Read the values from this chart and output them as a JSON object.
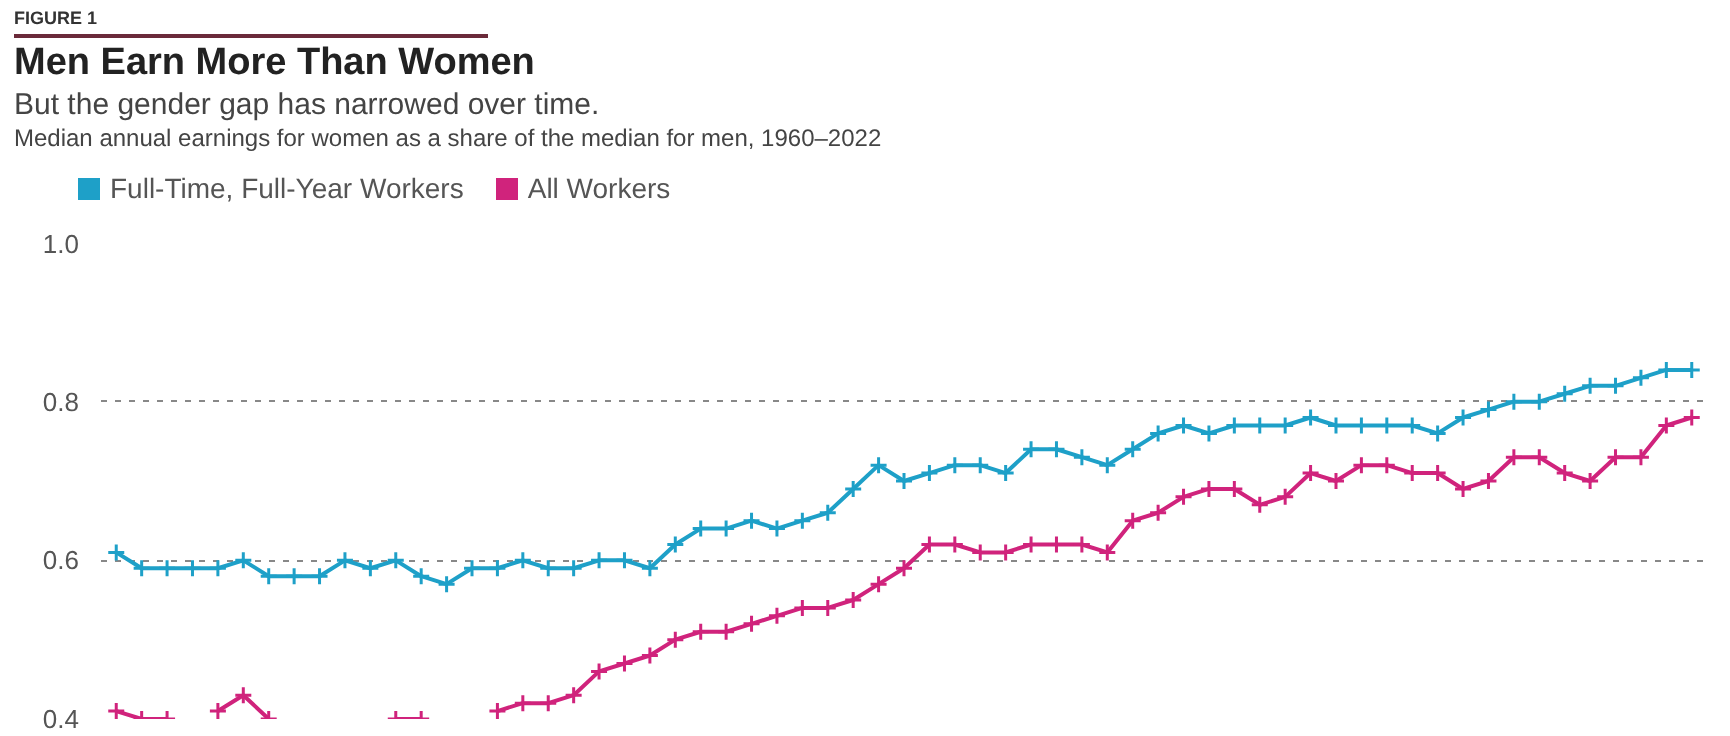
{
  "chart_data": {
    "type": "line",
    "title": "Men Earn More Than Women",
    "subtitle": "But the gender gap has narrowed over time.",
    "annotations": [
      "FIGURE 1",
      "Median annual earnings for women as a share of the median for men, 1960–2022"
    ],
    "categories": [
      null,
      null,
      null,
      null,
      null,
      null,
      null,
      null,
      null,
      null,
      null,
      null,
      null,
      null,
      null,
      null,
      null,
      null,
      null,
      null,
      null,
      null,
      null,
      null,
      null,
      null,
      null,
      null,
      null,
      null,
      null,
      null,
      null,
      null,
      null,
      null,
      null,
      null,
      null,
      null,
      null,
      null,
      null,
      null,
      null,
      null,
      null,
      null,
      null,
      null,
      null,
      null,
      null,
      null,
      null,
      null,
      null,
      null,
      null,
      null,
      null,
      null,
      null
    ],
    "series": [
      {
        "name": "Full-Time, Full-Year Workers",
        "color": "#1ea0c8",
        "values": [
          0.61,
          0.59,
          0.59,
          0.59,
          0.59,
          0.6,
          0.58,
          0.58,
          0.58,
          0.6,
          0.59,
          0.6,
          0.58,
          0.57,
          0.59,
          0.59,
          0.6,
          0.59,
          0.59,
          0.6,
          0.6,
          0.59,
          0.62,
          0.64,
          0.64,
          0.65,
          0.64,
          0.65,
          0.66,
          0.69,
          0.72,
          0.7,
          0.71,
          0.72,
          0.72,
          0.71,
          0.74,
          0.74,
          0.73,
          0.72,
          0.74,
          0.76,
          0.77,
          0.76,
          0.77,
          0.77,
          0.77,
          0.78,
          0.77,
          0.77,
          0.77,
          0.77,
          0.76,
          0.78,
          0.79,
          0.8,
          0.8,
          0.81,
          0.82,
          0.82,
          0.83,
          0.84,
          0.84
        ]
      },
      {
        "name": "All Workers",
        "color": "#d0237c",
        "values": [
          0.41,
          0.4,
          0.4,
          null,
          0.41,
          0.43,
          0.4,
          null,
          null,
          null,
          null,
          0.4,
          0.4,
          null,
          null,
          0.41,
          0.42,
          0.42,
          0.43,
          0.46,
          0.47,
          0.48,
          0.5,
          0.51,
          0.51,
          0.52,
          0.53,
          0.54,
          0.54,
          0.55,
          0.57,
          0.59,
          0.62,
          0.62,
          0.61,
          0.61,
          0.62,
          0.62,
          0.62,
          0.61,
          0.65,
          0.66,
          0.68,
          0.69,
          0.69,
          0.67,
          0.68,
          0.71,
          0.7,
          0.72,
          0.72,
          0.71,
          0.71,
          0.69,
          0.7,
          0.73,
          0.73,
          0.71,
          0.7,
          0.73,
          0.73,
          0.77,
          0.78
        ]
      }
    ],
    "ylim": [
      0.4,
      1.0
    ],
    "yticks": [
      0.4,
      0.6,
      0.8,
      {
        "value": 1.0,
        "label": "1.0"
      }
    ],
    "grid": "y",
    "legend": "top left",
    "marker": "cross",
    "line_style": "solid",
    "tick_labels": "y"
  }
}
